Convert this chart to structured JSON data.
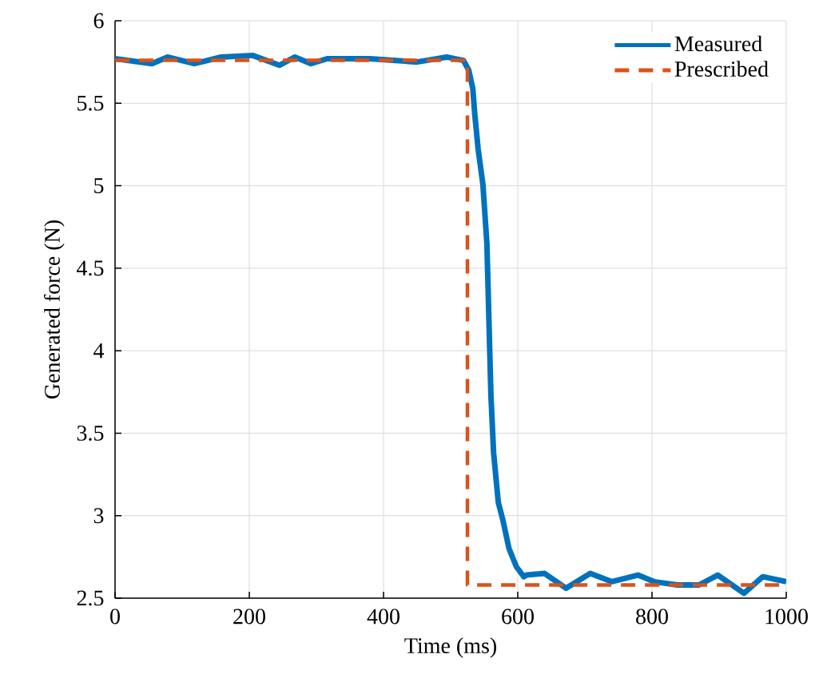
{
  "chart_data": {
    "type": "line",
    "xlabel": "Time (ms)",
    "ylabel": "Generated force (N)",
    "xlim": [
      0,
      1000
    ],
    "xticks": [
      0,
      200,
      400,
      600,
      800,
      1000
    ],
    "ylim": [
      2.5,
      6
    ],
    "yticks": [
      2.5,
      3,
      3.5,
      4,
      4.5,
      5,
      5.5,
      6
    ],
    "grid": true,
    "legend": "top right",
    "series": [
      {
        "name": "Measured",
        "color": "#0072bd",
        "line_style": "solid",
        "x": [
          0,
          55,
          78,
          118,
          158,
          205,
          245,
          268,
          292,
          316,
          379,
          450,
          494,
          519,
          527,
          533,
          536,
          541,
          548,
          554,
          557,
          560,
          564,
          571,
          578,
          587,
          598,
          609,
          613,
          640,
          672,
          708,
          740,
          779,
          803,
          838,
          870,
          898,
          937,
          965,
          1000
        ],
        "values": [
          5.77,
          5.74,
          5.78,
          5.74,
          5.78,
          5.79,
          5.73,
          5.78,
          5.74,
          5.77,
          5.77,
          5.75,
          5.78,
          5.76,
          5.7,
          5.59,
          5.43,
          5.22,
          5.01,
          4.65,
          4.19,
          3.73,
          3.38,
          3.08,
          2.97,
          2.8,
          2.69,
          2.63,
          2.64,
          2.65,
          2.56,
          2.65,
          2.6,
          2.64,
          2.6,
          2.58,
          2.58,
          2.64,
          2.53,
          2.63,
          2.6
        ]
      },
      {
        "name": "Prescribed",
        "color": "#d95319",
        "line_style": "dashed",
        "x": [
          0,
          525,
          525,
          1000
        ],
        "values": [
          5.76,
          5.76,
          2.58,
          2.58
        ]
      }
    ]
  }
}
